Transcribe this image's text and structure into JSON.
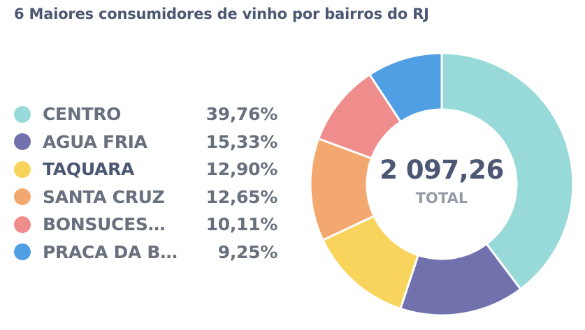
{
  "title": "6 Maiores consumidores de vinho por bairros do RJ",
  "legend": [
    {
      "label": "CENTRO",
      "pct": "39,76%",
      "color": "#98d9d9",
      "active": false
    },
    {
      "label": "AGUA FRIA",
      "pct": "15,33%",
      "color": "#7172ad",
      "active": false
    },
    {
      "label": "TAQUARA",
      "pct": "12,90%",
      "color": "#f9d45c",
      "active": true
    },
    {
      "label": "SANTA CRUZ",
      "pct": "12,65%",
      "color": "#f2a86f",
      "active": false
    },
    {
      "label": "BONSUCES…",
      "pct": "10,11%",
      "color": "#ef8c8c",
      "active": false
    },
    {
      "label": "PRACA DA B…",
      "pct": "9,25%",
      "color": "#509ee3",
      "active": false
    }
  ],
  "center": {
    "total": "2 097,26",
    "label": "TOTAL"
  },
  "chart_data": {
    "type": "pie",
    "title": "6 Maiores consumidores de vinho por bairros do RJ",
    "categories": [
      "CENTRO",
      "AGUA FRIA",
      "TAQUARA",
      "SANTA CRUZ",
      "BONSUCES…",
      "PRACA DA B…"
    ],
    "values": [
      39.76,
      15.33,
      12.9,
      12.65,
      10.11,
      9.25
    ],
    "colors": [
      "#98d9d9",
      "#7172ad",
      "#f9d45c",
      "#f2a86f",
      "#ef8c8c",
      "#509ee3"
    ],
    "total": "2 097,26",
    "donut": true,
    "legend": "left"
  }
}
